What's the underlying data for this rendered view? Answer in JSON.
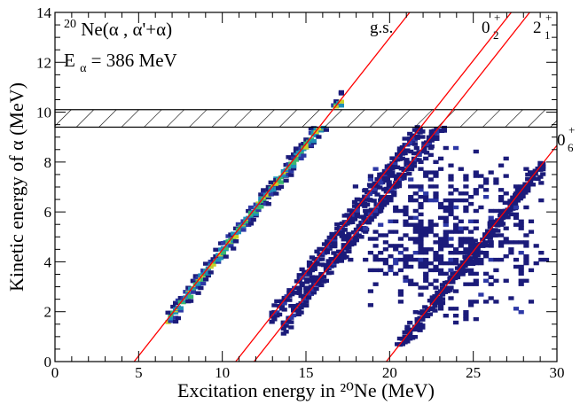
{
  "chart_data": {
    "type": "heatmap",
    "xlabel": "Excitation energy in ²⁰Ne (MeV)",
    "ylabel": "Kinetic energy of α (MeV)",
    "xlim": [
      0,
      30
    ],
    "ylim": [
      0,
      14
    ],
    "x_ticks": [
      "0",
      "5",
      "10",
      "15",
      "20",
      "25",
      "30"
    ],
    "y_ticks": [
      "0",
      "2",
      "4",
      "6",
      "8",
      "10",
      "12",
      "14"
    ],
    "annotations": {
      "reaction_sup": "20",
      "reaction": "Ne(α , α'+α)",
      "beam": "E",
      "beam_sub": "α",
      "beam_value": " = 386 MeV"
    },
    "excluded_band": {
      "y_range": [
        9.4,
        10.1
      ],
      "pattern": "hatched"
    },
    "kinematic_lines": [
      {
        "state": "g.s.",
        "label": "g.s.",
        "x_intercept": 4.73,
        "color": "#ff0000"
      },
      {
        "state": "0_2^+",
        "label": "0",
        "sup": "+",
        "sub": "2",
        "x_intercept": 10.8,
        "color": "#ff0000"
      },
      {
        "state": "2_1^+",
        "label": "2",
        "sup": "+",
        "sub": "1",
        "x_intercept": 11.9,
        "color": "#ff0000"
      },
      {
        "state": "0_6^+",
        "label": "0",
        "sup": "+",
        "sub": "6",
        "x_intercept": 19.8,
        "color": "#ff0000"
      }
    ],
    "line_slope": 0.85,
    "loci": [
      {
        "state": "g.s.",
        "x_range": [
          6.6,
          17.0
        ],
        "density": "high"
      },
      {
        "state": "0_2^+",
        "x_range": [
          12.8,
          25.0
        ],
        "density": "medium"
      },
      {
        "state": "2_1^+",
        "x_range": [
          13.5,
          25.5
        ],
        "density": "medium"
      },
      {
        "state": "0_6^+",
        "x_range": [
          20.0,
          29.0
        ],
        "density": "low"
      },
      {
        "state": "continuum",
        "x_range": [
          17.5,
          29.5
        ],
        "y_range": [
          1.5,
          8.5
        ],
        "density": "low"
      }
    ],
    "colormap": [
      "#1b1b7a",
      "#2d38a6",
      "#1f8fb8",
      "#38b870",
      "#c8d028"
    ],
    "grid": false,
    "legend": "none"
  }
}
